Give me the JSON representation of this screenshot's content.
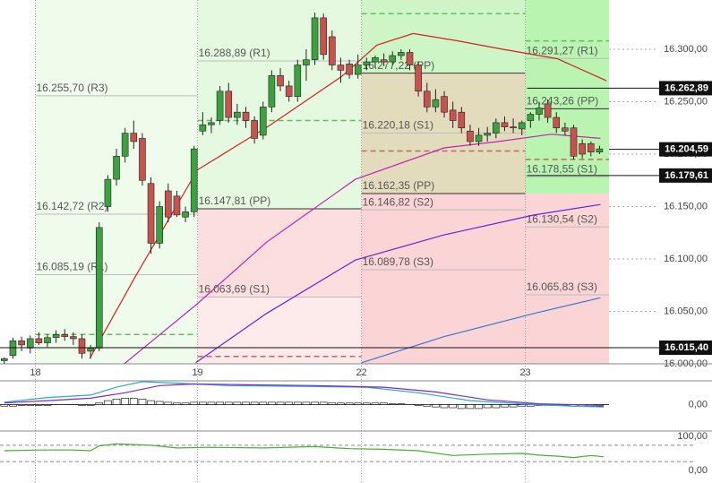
{
  "chart_data": {
    "type": "candlestick",
    "up_color": "#3aa23e",
    "down_color": "#c9524e",
    "xlim": [
      -0.5,
      70.1
    ],
    "xticks": [
      {
        "value": 3.6,
        "label": "18"
      },
      {
        "value": 22.4,
        "label": "19"
      },
      {
        "value": 41.4,
        "label": "22"
      },
      {
        "value": 60.4,
        "label": "23"
      }
    ],
    "ylim": [
      16000,
      16347
    ],
    "yticks": [
      {
        "value": 16000,
        "label": "16.000,00"
      },
      {
        "value": 16050,
        "label": "16.050,00"
      },
      {
        "value": 16100,
        "label": "16.100,00"
      },
      {
        "value": 16150,
        "label": "16.150,00"
      },
      {
        "value": 16200,
        "label": "16.200,00"
      },
      {
        "value": 16250,
        "label": "16.250,00"
      },
      {
        "value": 16300,
        "label": "16.300,00"
      }
    ],
    "candles": [
      [
        16003,
        16006,
        16000,
        16005
      ],
      [
        16008,
        16025,
        16005,
        16022
      ],
      [
        16022,
        16026,
        16012,
        16018
      ],
      [
        16015,
        16027,
        16010,
        16024
      ],
      [
        16024,
        16030,
        16018,
        16020
      ],
      [
        16020,
        16028,
        16016,
        16025
      ],
      [
        16025,
        16032,
        16020,
        16028
      ],
      [
        16028,
        16033,
        16022,
        16026
      ],
      [
        16026,
        16030,
        16018,
        16024
      ],
      [
        16024,
        16028,
        16005,
        16010
      ],
      [
        16012,
        16018,
        16005,
        16015
      ],
      [
        16015,
        16135,
        16012,
        16130
      ],
      [
        16150,
        16180,
        16145,
        16176
      ],
      [
        16176,
        16205,
        16170,
        16198
      ],
      [
        16198,
        16225,
        16192,
        16220
      ],
      [
        16220,
        16232,
        16205,
        16212
      ],
      [
        16215,
        16220,
        16170,
        16175
      ],
      [
        16172,
        16178,
        16105,
        16115
      ],
      [
        16115,
        16155,
        16110,
        16150
      ],
      [
        16165,
        16172,
        16135,
        16140
      ],
      [
        16160,
        16165,
        16140,
        16142
      ],
      [
        16140,
        16150,
        16135,
        16145
      ],
      [
        16145,
        16208,
        16140,
        16205
      ],
      [
        16222,
        16240,
        16218,
        16228
      ],
      [
        16228,
        16235,
        16220,
        16230
      ],
      [
        16232,
        16265,
        16228,
        16260
      ],
      [
        16260,
        16268,
        16230,
        16235
      ],
      [
        16235,
        16248,
        16228,
        16240
      ],
      [
        16240,
        16245,
        16225,
        16232
      ],
      [
        16232,
        16236,
        16210,
        16215
      ],
      [
        16218,
        16250,
        16214,
        16245
      ],
      [
        16245,
        16280,
        16240,
        16275
      ],
      [
        16275,
        16282,
        16260,
        16265
      ],
      [
        16265,
        16270,
        16250,
        16255
      ],
      [
        16255,
        16290,
        16250,
        16285
      ],
      [
        16285,
        16300,
        16270,
        16290
      ],
      [
        16290,
        16335,
        16285,
        16330
      ],
      [
        16330,
        16334,
        16290,
        16295
      ],
      [
        16312,
        16318,
        16280,
        16285
      ],
      [
        16285,
        16292,
        16268,
        16280
      ],
      [
        16286,
        16290,
        16272,
        16276
      ],
      [
        16276,
        16295,
        16272,
        16285
      ],
      [
        16285,
        16292,
        16280,
        16288
      ],
      [
        16288,
        16294,
        16282,
        16292
      ],
      [
        16290,
        16296,
        16284,
        16288
      ],
      [
        16288,
        16298,
        16285,
        16294
      ],
      [
        16294,
        16300,
        16290,
        16297
      ],
      [
        16297,
        16300,
        16280,
        16285
      ],
      [
        16285,
        16288,
        16255,
        16260
      ],
      [
        16260,
        16268,
        16240,
        16245
      ],
      [
        16245,
        16262,
        16240,
        16252
      ],
      [
        16255,
        16260,
        16235,
        16240
      ],
      [
        16242,
        16250,
        16225,
        16232
      ],
      [
        16240,
        16245,
        16220,
        16225
      ],
      [
        16222,
        16228,
        16208,
        16212
      ],
      [
        16212,
        16225,
        16208,
        16218
      ],
      [
        16218,
        16226,
        16212,
        16220
      ],
      [
        16220,
        16234,
        16215,
        16230
      ],
      [
        16230,
        16236,
        16222,
        16226
      ],
      [
        16226,
        16234,
        16220,
        16225
      ],
      [
        16224,
        16232,
        16218,
        16230
      ],
      [
        16232,
        16240,
        16225,
        16238
      ],
      [
        16238,
        16250,
        16232,
        16244
      ],
      [
        16248,
        16252,
        16230,
        16235
      ],
      [
        16235,
        16240,
        16220,
        16225
      ],
      [
        16225,
        16230,
        16218,
        16222
      ],
      [
        16225,
        16228,
        16195,
        16198
      ],
      [
        16210,
        16214,
        16196,
        16200
      ],
      [
        16210,
        16212,
        16198,
        16202
      ],
      [
        16202,
        16208,
        16200,
        16205
      ]
    ],
    "series": [
      {
        "color": "#d42020",
        "x": [
          9.9,
          15.1,
          22.4,
          30.7,
          39.1,
          43.2,
          47.4,
          52.6,
          57.8,
          64.1,
          69.8
        ],
        "values": [
          16005,
          16082,
          16185,
          16227,
          16274,
          16304,
          16315,
          16308,
          16300,
          16291,
          16270
        ]
      },
      {
        "color": "#c026b0",
        "x": [
          13.9,
          22.2,
          30.4,
          40.7,
          51.0,
          57.2,
          63.4,
          69.1
        ],
        "values": [
          16000,
          16056,
          16116,
          16176,
          16206,
          16212,
          16219,
          16215
        ]
      },
      {
        "color": "#6a22d0",
        "x": [
          22.2,
          30.4,
          40.7,
          51.0,
          61.4,
          69.1
        ],
        "values": [
          16001,
          16048,
          16099,
          16123,
          16142,
          16152
        ]
      },
      {
        "color": "#3a78d0",
        "x": [
          41.4,
          51.0,
          61.4,
          69.1
        ],
        "values": [
          16001,
          16026,
          16048,
          16063
        ]
      }
    ],
    "blocks": [
      {
        "start": 3.6,
        "end": 22.4,
        "bands": [
          {
            "from": 16347,
            "to": 16000,
            "color": "#effcec"
          }
        ],
        "levels": [
          {
            "value": 16255.7,
            "label": "16.255,70 (R3)",
            "color": "#bbbbbb"
          },
          {
            "value": 16142.72,
            "label": "16.142,72 (R2)",
            "color": "#bbbbbb"
          },
          {
            "value": 16085.19,
            "label": "16.085,19 (R1)",
            "color": "#bbbbbb"
          },
          {
            "value": 16028,
            "color": "#66bb66",
            "dashed": true
          }
        ]
      },
      {
        "start": 22.4,
        "end": 41.4,
        "bands": [
          {
            "from": 16347,
            "to": 16147.81,
            "color": "#e4f9e0"
          },
          {
            "from": 16147.81,
            "to": 16063.69,
            "color": "#fcdede"
          },
          {
            "from": 16063.69,
            "to": 16000,
            "color": "#fdebeb"
          }
        ],
        "levels": [
          {
            "value": 16288.89,
            "label": "16.288,89 (R1)",
            "color": "#bbbbbb"
          },
          {
            "value": 16232,
            "color": "#66bb66",
            "dashed": true
          },
          {
            "value": 16147.81,
            "label": "16.147,81 (PP)",
            "color": "#333333"
          },
          {
            "value": 16063.69,
            "label": "16.063,69 (S1)",
            "color": "#bbbbbb"
          },
          {
            "value": 16007,
            "color": "#d06060",
            "dashed": true
          }
        ]
      },
      {
        "start": 41.4,
        "end": 60.4,
        "bands": [
          {
            "from": 16347,
            "to": 16277.22,
            "color": "#cdf5c6"
          },
          {
            "from": 16277.22,
            "to": 16162.35,
            "color": "#e3dcbc"
          },
          {
            "from": 16162.35,
            "to": 16000,
            "color": "#fbd5d5"
          }
        ],
        "levels": [
          {
            "value": 16334,
            "color": "#66bb66",
            "dashed": true
          },
          {
            "value": 16277.22,
            "label": "16.277,22 (PP)",
            "color": "#333333"
          },
          {
            "value": 16220.18,
            "label": "16.220,18 (S1)",
            "color": "#bbbbbb"
          },
          {
            "value": 16203,
            "color": "#b07060",
            "dashed": true
          },
          {
            "value": 16162.35,
            "label": "16.162,35 (PP)",
            "color": "#333333"
          },
          {
            "value": 16146.82,
            "label": "16.146,82 (S2)",
            "color": "#bbbbbb"
          },
          {
            "value": 16089.78,
            "label": "16.089,78 (S3)",
            "color": "#bbbbbb"
          }
        ]
      },
      {
        "start": 60.4,
        "end": 70.1,
        "bands": [
          {
            "from": 16347,
            "to": 16162.35,
            "color": "#b9f4b1"
          },
          {
            "from": 16162.35,
            "to": 16000,
            "color": "#fbd5d5"
          }
        ],
        "levels": [
          {
            "value": 16308,
            "color": "#66bb66",
            "dashed": true
          },
          {
            "value": 16291.27,
            "label": "16.291,27 (R1)",
            "color": "#bbbbbb"
          },
          {
            "value": 16243.26,
            "label": "16.243,26 (PP)",
            "color": "#333333"
          },
          {
            "value": 16195,
            "color": "#d06060",
            "dashed": true
          },
          {
            "value": 16178.55,
            "label": "16.178,55 (S1)",
            "color": "#bbbbbb"
          },
          {
            "value": 16130.54,
            "label": "16.130,54 (S2)",
            "color": "#bbbbbb"
          },
          {
            "value": 16065.83,
            "label": "16.065,83 (S3)",
            "color": "#bbbbbb"
          }
        ]
      }
    ],
    "price_tags": [
      {
        "value": 16262.89,
        "label": "16.262,89",
        "from": 60.6
      },
      {
        "value": 16204.59,
        "label": "16.204,59",
        "from": 70.1
      },
      {
        "value": 16179.61,
        "label": "16.179,61",
        "from": 60.6
      },
      {
        "value": 16015.4,
        "label": "16.015,40",
        "from": -0.5
      }
    ],
    "macd": {
      "ylim": [
        -30,
        30
      ],
      "yticks": [
        {
          "value": 0,
          "label": "0,00"
        }
      ],
      "histogram": [
        -2,
        -2,
        -1,
        -1,
        -1,
        -1,
        0,
        0,
        0,
        -1,
        -1,
        2,
        5,
        7,
        8,
        8,
        7,
        5,
        4,
        3,
        2,
        2,
        3,
        3,
        3,
        3,
        3,
        3,
        3,
        3,
        3,
        3,
        3,
        3,
        3,
        3,
        3,
        3,
        2,
        2,
        2,
        2,
        2,
        2,
        2,
        1,
        1,
        0,
        -1,
        -2,
        -3,
        -4,
        -4,
        -5,
        -5,
        -5,
        -4,
        -4,
        -3,
        -3,
        -2,
        -2,
        -1,
        -1,
        -1,
        -1,
        -2,
        -2,
        -2,
        -2
      ],
      "series": [
        {
          "color": "#2aa8d8",
          "x": [
            0,
            5,
            10,
            13,
            16,
            20,
            26,
            34,
            42,
            48,
            54,
            60,
            66,
            69.5
          ],
          "values": [
            3,
            9,
            12,
            22,
            29,
            27,
            24,
            23,
            22,
            15,
            5,
            1,
            -2,
            -3
          ]
        },
        {
          "color": "#7a2ad0",
          "x": [
            0,
            5,
            10,
            14,
            18,
            22,
            28,
            36,
            44,
            50,
            56,
            62,
            69.5
          ],
          "values": [
            2,
            5,
            8,
            15,
            24,
            26,
            25,
            24,
            22,
            16,
            6,
            1,
            -1
          ]
        }
      ]
    },
    "oscillator": {
      "ylim": [
        0,
        100
      ],
      "yticks": [
        {
          "value": 100,
          "label": "100,00"
        },
        {
          "value": 0,
          "label": "0,00"
        }
      ],
      "bands": [
        74,
        26
      ],
      "series": [
        {
          "color": "#44b030",
          "x": [
            0,
            4,
            8,
            10,
            11,
            13,
            17,
            20,
            24,
            30,
            36,
            40,
            44,
            48,
            52,
            56,
            60,
            62,
            64,
            66,
            68,
            69.5
          ],
          "values": [
            58,
            60,
            60,
            58,
            72,
            78,
            74,
            66,
            68,
            66,
            70,
            64,
            62,
            58,
            44,
            48,
            50,
            45,
            42,
            38,
            44,
            40
          ]
        }
      ]
    }
  }
}
